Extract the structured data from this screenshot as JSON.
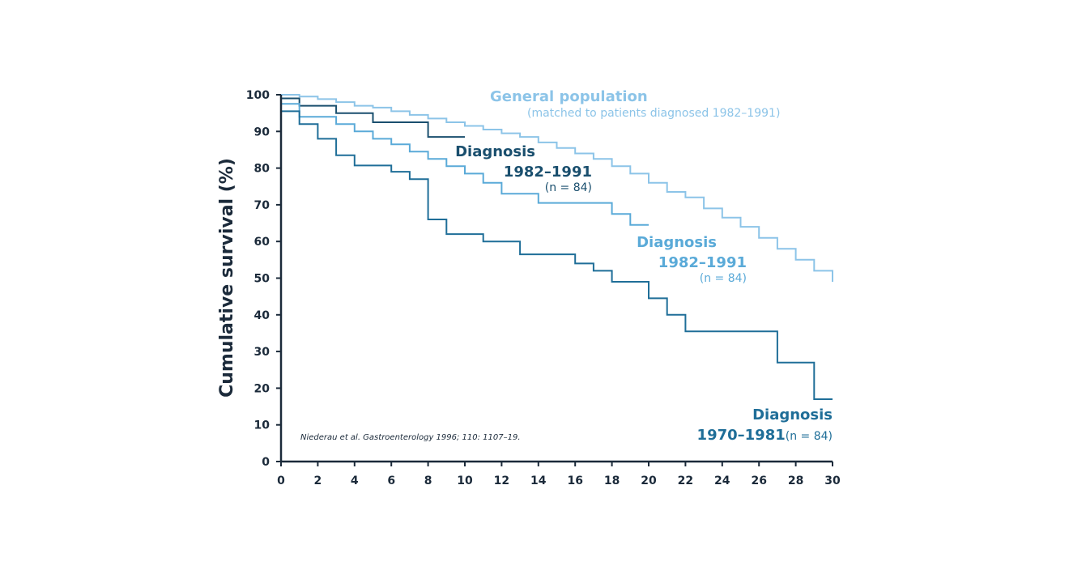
{
  "chart_data": {
    "type": "line",
    "ylabel": "Cumulative survival (%)",
    "xlabel": "",
    "xlim": [
      0,
      30
    ],
    "ylim": [
      0,
      100
    ],
    "xticks": [
      0,
      2,
      4,
      6,
      8,
      10,
      12,
      14,
      16,
      18,
      20,
      22,
      24,
      26,
      28,
      30
    ],
    "yticks": [
      0,
      10,
      20,
      30,
      40,
      50,
      60,
      70,
      80,
      90,
      100
    ],
    "grid": false,
    "citation": "Niederau et al. Gastroenterology 1996; 110: 1107–19.",
    "colors": {
      "general": "#8cc4e8",
      "light": "#5aaad8",
      "dark": "#1a4f6e",
      "mid": "#1f6e98",
      "axis": "#1b2a3a"
    },
    "annotations": {
      "general": {
        "title": "General population",
        "sub": "(matched to patients diagnosed 1982–1991)"
      },
      "dark": {
        "title": "Diagnosis",
        "years": "1982–1991",
        "n": "(n = 84)"
      },
      "light": {
        "title": "Diagnosis",
        "years": "1982–1991",
        "n": "(n = 84)"
      },
      "mid": {
        "title": "Diagnosis",
        "years": "1970–1981",
        "n": "(n = 84)"
      }
    },
    "series": [
      {
        "key": "general",
        "color": "#8cc4e8",
        "points": [
          [
            0,
            100
          ],
          [
            1,
            99.5
          ],
          [
            2,
            98.8
          ],
          [
            3,
            98
          ],
          [
            4,
            97
          ],
          [
            5,
            96.5
          ],
          [
            6,
            95.5
          ],
          [
            7,
            94.5
          ],
          [
            8,
            93.5
          ],
          [
            9,
            92.5
          ],
          [
            10,
            91.5
          ],
          [
            11,
            90.5
          ],
          [
            12,
            89.5
          ],
          [
            13,
            88.5
          ],
          [
            14,
            87
          ],
          [
            15,
            85.5
          ],
          [
            16,
            84
          ],
          [
            17,
            82.5
          ],
          [
            18,
            80.5
          ],
          [
            19,
            78.5
          ],
          [
            20,
            76
          ],
          [
            21,
            73.5
          ],
          [
            22,
            72
          ],
          [
            23,
            69
          ],
          [
            24,
            66.5
          ],
          [
            25,
            64
          ],
          [
            26,
            61
          ],
          [
            27,
            58
          ],
          [
            28,
            55
          ],
          [
            29,
            52
          ],
          [
            30,
            49
          ]
        ]
      },
      {
        "key": "dark",
        "color": "#1a4f6e",
        "points": [
          [
            0,
            99
          ],
          [
            1,
            97
          ],
          [
            3,
            95
          ],
          [
            5,
            92.5
          ],
          [
            8,
            88.5
          ],
          [
            10,
            88.5
          ]
        ]
      },
      {
        "key": "light",
        "color": "#5aaad8",
        "points": [
          [
            0,
            97.5
          ],
          [
            1,
            94
          ],
          [
            3,
            92
          ],
          [
            4,
            90
          ],
          [
            5,
            88
          ],
          [
            6,
            86.5
          ],
          [
            7,
            84.5
          ],
          [
            8,
            82.5
          ],
          [
            9,
            80.5
          ],
          [
            10,
            78.5
          ],
          [
            11,
            76
          ],
          [
            12,
            73
          ],
          [
            14,
            70.5
          ],
          [
            18,
            67.5
          ],
          [
            19,
            64.5
          ],
          [
            20,
            64.5
          ]
        ]
      },
      {
        "key": "mid",
        "color": "#1f6e98",
        "points": [
          [
            0,
            95.5
          ],
          [
            1,
            92
          ],
          [
            2,
            88
          ],
          [
            3,
            83.5
          ],
          [
            4,
            80.7
          ],
          [
            6,
            79
          ],
          [
            7,
            77
          ],
          [
            8,
            66
          ],
          [
            9,
            62
          ],
          [
            11,
            60
          ],
          [
            13,
            56.5
          ],
          [
            16,
            54
          ],
          [
            17,
            52
          ],
          [
            18,
            49
          ],
          [
            20,
            44.5
          ],
          [
            21,
            40
          ],
          [
            22,
            35.5
          ],
          [
            27,
            27
          ],
          [
            29,
            17
          ],
          [
            30,
            17
          ]
        ]
      }
    ]
  }
}
